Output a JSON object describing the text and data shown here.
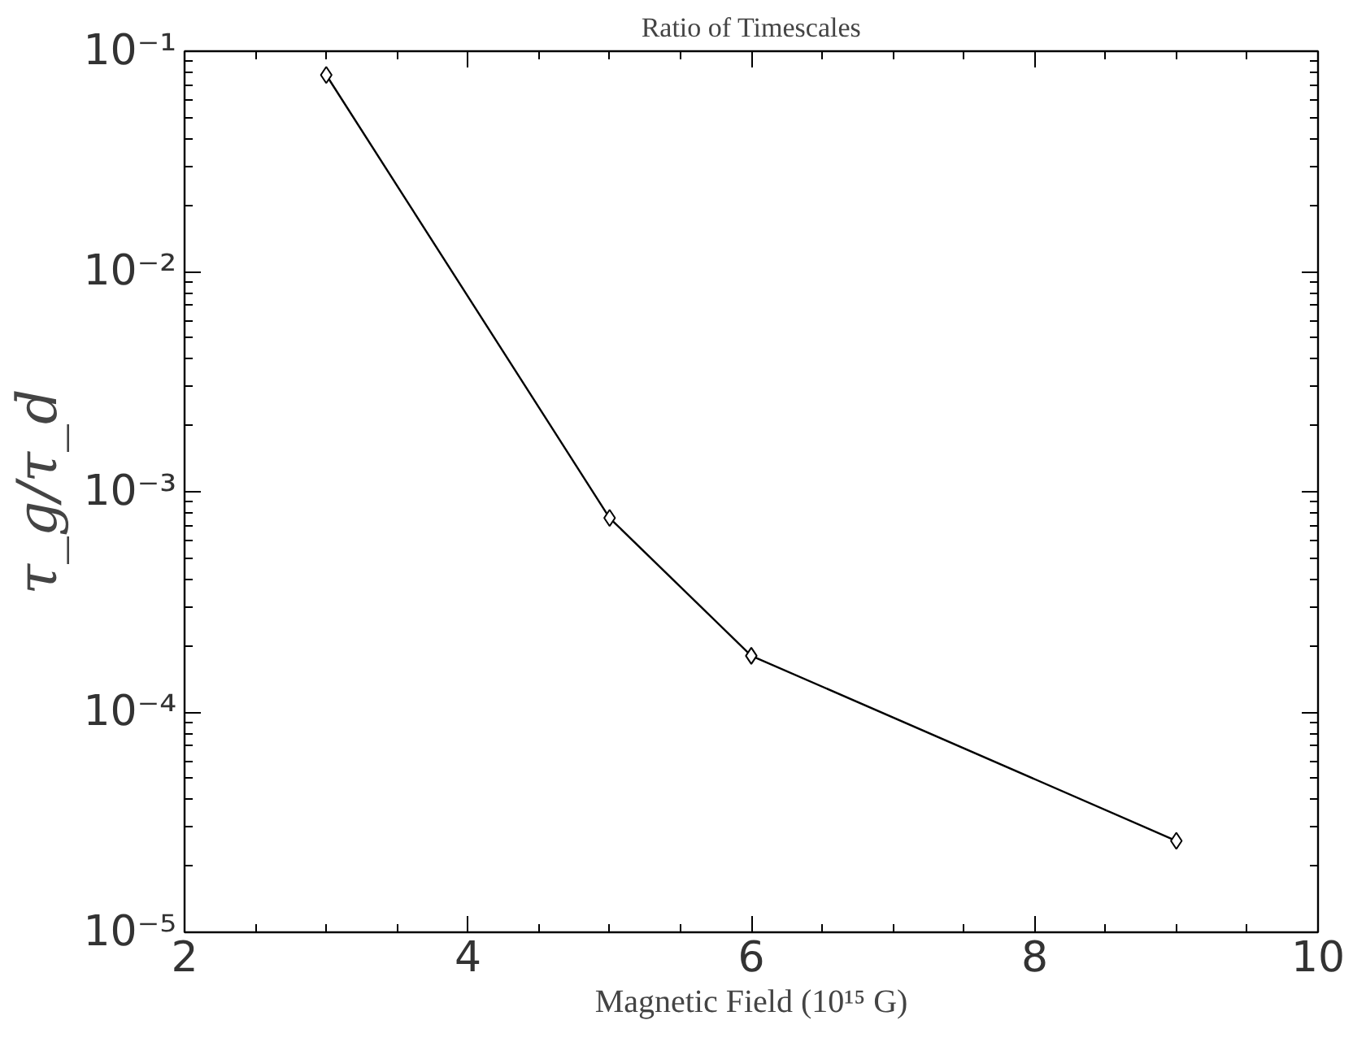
{
  "chart_data": {
    "type": "line",
    "title": "Ratio of Timescales",
    "xlabel": "Magnetic Field (10¹⁵ G)",
    "ylabel": "τ_g/τ_d",
    "x": [
      3,
      5,
      6,
      9
    ],
    "series": [
      {
        "color": "#000000",
        "values": [
          0.078,
          0.00076,
          0.00018,
          2.6e-05
        ]
      }
    ],
    "xlim": [
      2,
      10
    ],
    "xticks": [
      2,
      4,
      6,
      8,
      10
    ],
    "ylim": [
      1e-05,
      0.1
    ],
    "yticks": [
      {
        "value": 0.1,
        "label": "10⁻¹"
      },
      {
        "value": 0.01,
        "label": "10⁻²"
      },
      {
        "value": 0.001,
        "label": "10⁻³"
      },
      {
        "value": 0.0001,
        "label": "10⁻⁴"
      },
      {
        "value": 1e-05,
        "label": "10⁻⁵"
      }
    ],
    "log": "y",
    "grid": false,
    "marker": "diamond",
    "line_style": "solid"
  }
}
